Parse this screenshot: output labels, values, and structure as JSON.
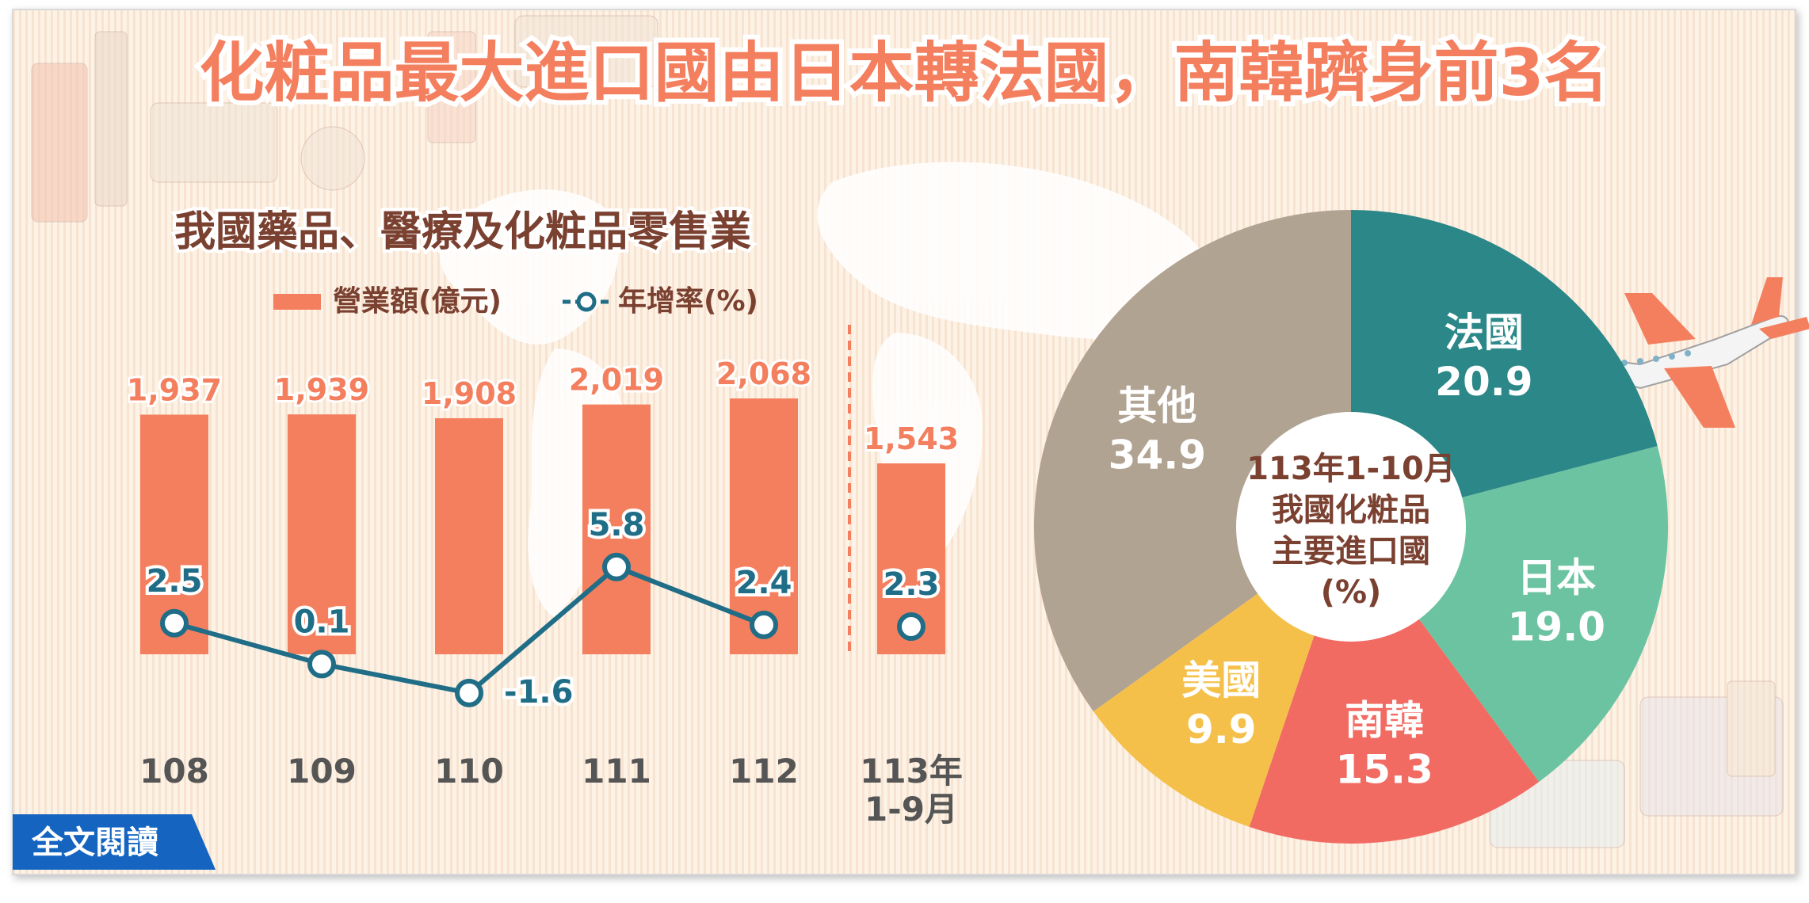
{
  "title": "化粧品最大進口國由日本轉法國，南韓躋身前3名",
  "read_more_label": "全文閱讀",
  "colors": {
    "bar": "#f47f5e",
    "line": "#1f6d86",
    "title": "#f47f5e",
    "subtitle": "#7a4030",
    "france": "#2b8788",
    "japan": "#6cc3a1",
    "korea": "#f26b63",
    "usa": "#f5c04a",
    "other": "#b1a392"
  },
  "chart_data": [
    {
      "type": "bar",
      "title": "我國藥品、醫療及化粧品零售業",
      "legend": {
        "bar_label": "營業額(億元)",
        "line_label": "年增率(%)"
      },
      "categories": [
        "108",
        "109",
        "110",
        "111",
        "112",
        "113年 1-9月"
      ],
      "category_lines": [
        [
          "108"
        ],
        [
          "109"
        ],
        [
          "110"
        ],
        [
          "111"
        ],
        [
          "112"
        ],
        [
          "113年",
          "1-9月"
        ]
      ],
      "series": [
        {
          "name": "營業額(億元)",
          "type": "bar",
          "values": [
            1937,
            1939,
            1908,
            2019,
            2068,
            1543
          ],
          "labels": [
            "1,937",
            "1,939",
            "1,908",
            "2,019",
            "2,068",
            "1,543"
          ]
        },
        {
          "name": "年增率(%)",
          "type": "line",
          "values": [
            2.5,
            0.1,
            -1.6,
            5.8,
            2.4,
            2.3
          ],
          "labels": [
            "2.5",
            "0.1",
            "-1.6",
            "5.8",
            "2.4",
            "2.3"
          ]
        }
      ],
      "ylim_bar": [
        0,
        2100
      ],
      "ylim_line": [
        -3,
        7
      ]
    },
    {
      "type": "pie",
      "title_lines": [
        "113年1-10月",
        "我國化粧品",
        "主要進口國",
        "(%)"
      ],
      "slices": [
        {
          "label": "法國",
          "value": 20.9,
          "value_label": "20.9",
          "color": "#2b8788"
        },
        {
          "label": "日本",
          "value": 19.0,
          "value_label": "19.0",
          "color": "#6cc3a1"
        },
        {
          "label": "南韓",
          "value": 15.3,
          "value_label": "15.3",
          "color": "#f26b63"
        },
        {
          "label": "美國",
          "value": 9.9,
          "value_label": "9.9",
          "color": "#f5c04a"
        },
        {
          "label": "其他",
          "value": 34.9,
          "value_label": "34.9",
          "color": "#b1a392"
        }
      ]
    }
  ]
}
